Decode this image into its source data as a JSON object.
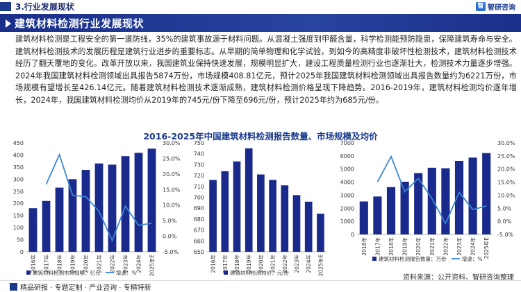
{
  "header": {
    "section_title": "3.行业发展现状",
    "logo_mark": "智",
    "logo_text": "智研咨询"
  },
  "banner": {
    "title": "建筑材料检测行业发展现状"
  },
  "body": {
    "paragraph": "建筑材料检测是工程安全的第一道防线，35%的建筑事故源于材料问题。从混凝土强度到甲醛含量，科学检测能预防隐患，保障建筑寿命与安全。建筑材料检测技术的发展历程是建筑行业进步的重要标志。从早期的简单物理和化学试验，到如今的高精度非破坏性检测技术，建筑材料检测技术经历了翻天覆地的变化。改革开放以来，我国建筑业保持快速发展，规模明显扩大，建设工程质量检测行业也逐渐壮大，检测技术力量逐步增强。2024年我国建筑材料检测领域出具报告5874万份，市场规模408.81亿元，预计2025年我国建筑材料检测领域出具报告数量约为6221万份，市场规模有望增长至426.14亿元。随着建筑材料检测技术逐渐成熟，建筑材料检测价格呈现下降趋势。2016-2019年，建筑材料检测均价逐年增长，2024年，我国建筑材料检测均价从2019年的745元/份下降至696元/份，预计2025年约为685元/份。"
  },
  "chart_title": "2016-2025年中国建筑材料检测报告数量、市场规模及均价",
  "colors": {
    "bar": "#1a2a8c",
    "line": "#3a86d4",
    "banner": "#1a2f8a"
  },
  "chart_data": [
    {
      "type": "bar",
      "categories": [
        "2016年",
        "2017年",
        "2018年",
        "2019年",
        "2020年",
        "2021年",
        "2022年",
        "2023年",
        "2024年",
        "2025年E"
      ],
      "series": [
        {
          "name": "建筑材料检测市场规模：亿元",
          "values": [
            180,
            210,
            265,
            300,
            338,
            365,
            360,
            395,
            408.81,
            426.14
          ]
        },
        {
          "name": "增速：%",
          "values": [
            null,
            16.7,
            26.2,
            13.2,
            12.7,
            8.0,
            -1.4,
            9.7,
            3.5,
            4.2
          ],
          "axis": "right"
        }
      ],
      "ylim": [
        0,
        450
      ],
      "y_ticks": [
        "0",
        "50",
        "100",
        "150",
        "200",
        "250",
        "300",
        "350",
        "400",
        "450"
      ],
      "y2lim": [
        -5,
        30
      ],
      "y2_ticks": [
        "-5.0%",
        "0.0%",
        "5.0%",
        "10.0%",
        "15.0%",
        "20.0%",
        "25.0%",
        "30.0%"
      ],
      "legend": "bottom"
    },
    {
      "type": "bar",
      "categories": [
        "2016年",
        "2017年",
        "2018年",
        "2019年",
        "2020年",
        "2021年",
        "2022年",
        "2023年",
        "2024年",
        "2025年E"
      ],
      "series": [
        {
          "name": "建筑材料检测均价：元/份",
          "values": [
            716,
            724,
            733,
            745,
            721,
            716,
            711,
            702,
            696,
            685
          ]
        }
      ],
      "ylim": [
        650,
        750
      ],
      "y_ticks": [
        "650",
        "660",
        "670",
        "680",
        "690",
        "700",
        "710",
        "720",
        "730",
        "740",
        "750"
      ],
      "legend": "bottom"
    },
    {
      "type": "bar",
      "categories": [
        "2016年",
        "2017年",
        "2018年",
        "2019年",
        "2020年",
        "2021年",
        "2022年",
        "2023年",
        "2024年",
        "2025年E"
      ],
      "series": [
        {
          "name": "建筑材料检测报告数量：万份",
          "values": [
            2520,
            2900,
            3620,
            4030,
            4690,
            5100,
            5060,
            5620,
            5874,
            6221
          ]
        },
        {
          "name": "增速：%",
          "values": [
            null,
            15.1,
            24.8,
            11.3,
            16.4,
            8.7,
            -0.8,
            11.1,
            4.5,
            5.9
          ],
          "axis": "right"
        }
      ],
      "ylim": [
        0,
        7000
      ],
      "y_ticks": [
        "0",
        "1000",
        "2000",
        "3000",
        "4000",
        "5000",
        "6000",
        "7000"
      ],
      "y2lim": [
        -5,
        30
      ],
      "y2_ticks": [
        "-5.0%",
        "0.0%",
        "5.0%",
        "10.0%",
        "15.0%",
        "20.0%",
        "25.0%",
        "30.0%"
      ],
      "legend": "bottom"
    }
  ],
  "footer": {
    "left_text": "精品研报 · 专题定制 · 产业咨询 · 专精特新",
    "source": "资料来源：公开资料、智研咨询整理"
  }
}
